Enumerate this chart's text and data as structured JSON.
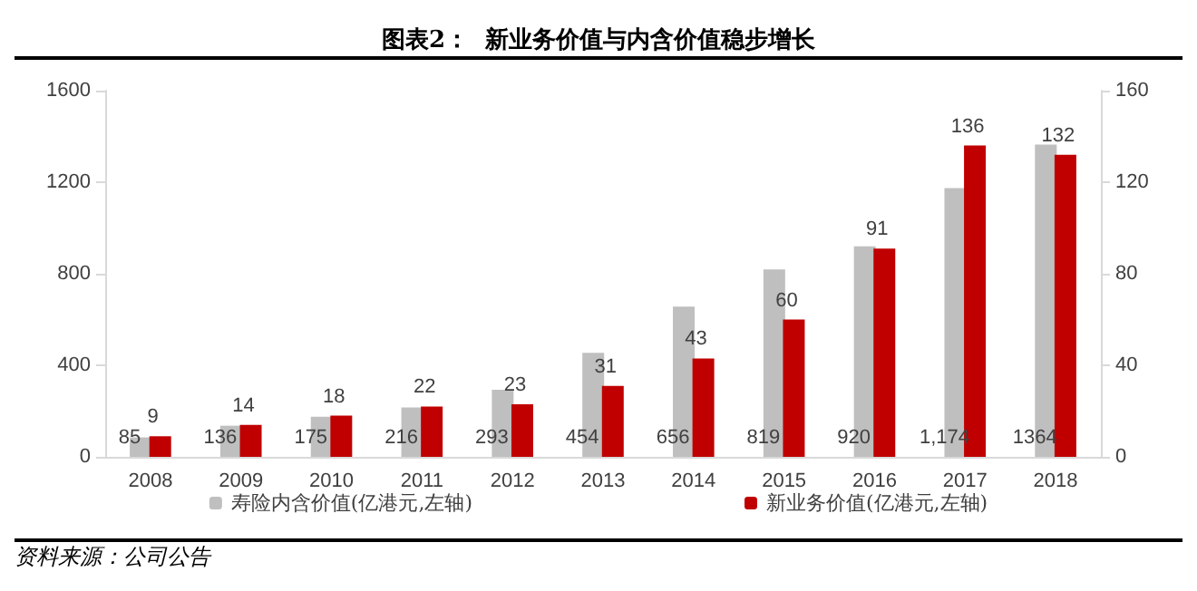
{
  "chart_data": {
    "type": "bar",
    "title": "图表2：  新业务价值与内含价值稳步增长",
    "categories": [
      "2008",
      "2009",
      "2010",
      "2011",
      "2012",
      "2013",
      "2014",
      "2015",
      "2016",
      "2017",
      "2018"
    ],
    "series": [
      {
        "name": "寿险内含价值(亿港元,左轴)",
        "color": "#bfbfbf",
        "values": [
          85,
          136,
          175,
          216,
          293,
          454,
          656,
          819,
          920,
          1174,
          1364
        ],
        "value_labels": [
          "85",
          "136",
          "175",
          "216",
          "293",
          "454",
          "656",
          "819",
          "920",
          "1,174",
          "1364"
        ]
      },
      {
        "name": "新业务价值(亿港元,左轴)",
        "color": "#c00000",
        "axis": "y2",
        "values": [
          9,
          14,
          18,
          22,
          23,
          31,
          43,
          60,
          91,
          136,
          132
        ],
        "value_labels": [
          "9",
          "14",
          "18",
          "22",
          "23",
          "31",
          "43",
          "60",
          "91",
          "136",
          "132"
        ]
      }
    ],
    "ylim": [
      0,
      1600
    ],
    "yticks": [
      0,
      400,
      800,
      1200,
      1600
    ],
    "y2lim": [
      0,
      160
    ],
    "y2ticks": [
      0,
      40,
      80,
      120,
      160
    ],
    "grid": false,
    "legend": "bottom",
    "annotations": [
      "资料来源：公司公告"
    ]
  }
}
